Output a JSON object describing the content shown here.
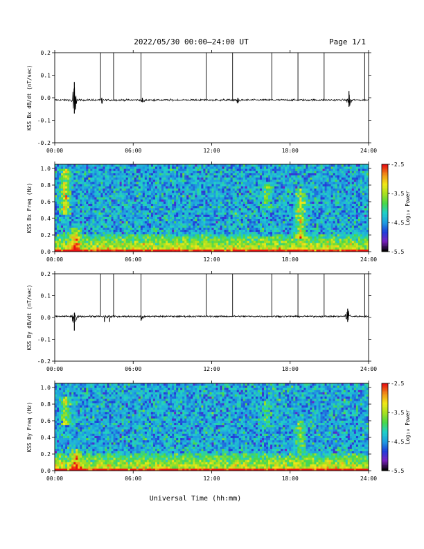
{
  "header": {
    "title": "2022/05/30  00:00–24:00 UT",
    "page": "Page 1/1"
  },
  "xlabel": "Universal Time (hh:mm)",
  "colors": {
    "trace": "#000000",
    "colormap": [
      "#000000",
      "#7a1fbf",
      "#1f3fd9",
      "#1f9fe0",
      "#20d0c8",
      "#48d848",
      "#a8e020",
      "#f0e818",
      "#f09018",
      "#e81010"
    ]
  },
  "chart_data": [
    {
      "id": "bx-waveform",
      "type": "line",
      "ylabel": "KSS Bx dB/dt (nT/sec)",
      "x_ticks": [
        "00:00",
        "06:00",
        "12:00",
        "18:00",
        "24:00"
      ],
      "y_ticks": [
        "0.2",
        "0.1",
        "0.0",
        "-0.1",
        "-0.2"
      ],
      "xlim_hours": [
        0,
        24
      ],
      "ylim": [
        -0.2,
        0.2
      ],
      "baseline": -0.01,
      "noise_amplitude": 0.004,
      "bursts": [
        {
          "hour": 1.5,
          "max": 0.07,
          "min": -0.07
        },
        {
          "hour": 3.6,
          "max": 0.0,
          "min": -0.025
        },
        {
          "hour": 6.7,
          "max": 0.0,
          "min": -0.02
        },
        {
          "hour": 14.0,
          "max": 0.0,
          "min": -0.025
        },
        {
          "hour": 22.5,
          "max": 0.03,
          "min": -0.04
        }
      ],
      "spikes": [
        {
          "hour": 3.5,
          "value": 0.2
        },
        {
          "hour": 4.5,
          "value": 0.2
        },
        {
          "hour": 6.6,
          "value": 0.2
        },
        {
          "hour": 11.6,
          "value": 0.2
        },
        {
          "hour": 13.6,
          "value": 0.2
        },
        {
          "hour": 16.6,
          "value": 0.2
        },
        {
          "hour": 18.6,
          "value": 0.2
        },
        {
          "hour": 20.6,
          "value": 0.2
        },
        {
          "hour": 23.7,
          "value": 0.2
        }
      ]
    },
    {
      "id": "bx-spectrogram",
      "type": "heatmap",
      "ylabel": "KSS Bx Freq (Hz)",
      "colorbar_label": "Log₁₀ Power",
      "colorbar_ticks": [
        "-2.5",
        "-3.5",
        "-4.5",
        "-5.5"
      ],
      "color_range": [
        -5.5,
        -2.5
      ],
      "x_ticks": [
        "00:00",
        "06:00",
        "12:00",
        "18:00",
        "24:00"
      ],
      "y_ticks": [
        "1.0",
        "0.8",
        "0.6",
        "0.4",
        "0.2",
        "0.0"
      ],
      "xlim_hours": [
        0,
        24
      ],
      "ylim": [
        0.0,
        1.05
      ],
      "background_power": -4.4,
      "low_freq_power": -3.4,
      "features": [
        {
          "hour": 0.8,
          "freq_low": 0.45,
          "freq_high": 1.0,
          "power": -2.9
        },
        {
          "hour": 1.6,
          "freq_low": 0.0,
          "freq_high": 0.3,
          "power": -3.3
        },
        {
          "hour": 16.2,
          "freq_low": 0.5,
          "freq_high": 0.85,
          "power": -3.6
        },
        {
          "hour": 18.8,
          "freq_low": 0.15,
          "freq_high": 0.75,
          "power": -3.2
        }
      ]
    },
    {
      "id": "by-waveform",
      "type": "line",
      "ylabel": "KSS By dB/dt (nT/sec)",
      "x_ticks": [
        "00:00",
        "06:00",
        "12:00",
        "18:00",
        "24:00"
      ],
      "y_ticks": [
        "0.2",
        "0.1",
        "0.0",
        "-0.1",
        "-0.2"
      ],
      "xlim_hours": [
        0,
        24
      ],
      "ylim": [
        -0.2,
        0.2
      ],
      "baseline": 0.005,
      "noise_amplitude": 0.004,
      "bursts": [
        {
          "hour": 1.5,
          "max": 0.02,
          "min": -0.06
        },
        {
          "hour": 3.8,
          "max": 0.0,
          "min": -0.02
        },
        {
          "hour": 4.2,
          "max": 0.0,
          "min": -0.02
        },
        {
          "hour": 6.6,
          "max": 0.0,
          "min": -0.015
        },
        {
          "hour": 22.4,
          "max": 0.04,
          "min": -0.02
        }
      ],
      "spikes": [
        {
          "hour": 3.5,
          "value": 0.2
        },
        {
          "hour": 4.5,
          "value": 0.2
        },
        {
          "hour": 6.6,
          "value": 0.2
        },
        {
          "hour": 11.6,
          "value": 0.2
        },
        {
          "hour": 13.6,
          "value": 0.2
        },
        {
          "hour": 16.6,
          "value": 0.2
        },
        {
          "hour": 18.6,
          "value": 0.2
        },
        {
          "hour": 20.6,
          "value": 0.2
        },
        {
          "hour": 23.7,
          "value": 0.2
        }
      ]
    },
    {
      "id": "by-spectrogram",
      "type": "heatmap",
      "ylabel": "KSS By Freq (Hz)",
      "colorbar_label": "Log₁₀ Power",
      "colorbar_ticks": [
        "-2.5",
        "-3.5",
        "-4.5",
        "-5.5"
      ],
      "color_range": [
        -5.5,
        -2.5
      ],
      "x_ticks": [
        "00:00",
        "06:00",
        "12:00",
        "18:00",
        "24:00"
      ],
      "y_ticks": [
        "1.0",
        "0.8",
        "0.6",
        "0.4",
        "0.2",
        "0.0"
      ],
      "xlim_hours": [
        0,
        24
      ],
      "ylim": [
        0.0,
        1.05
      ],
      "background_power": -4.4,
      "low_freq_power": -3.4,
      "features": [
        {
          "hour": 0.8,
          "freq_low": 0.55,
          "freq_high": 0.9,
          "power": -3.3
        },
        {
          "hour": 1.6,
          "freq_low": 0.0,
          "freq_high": 0.25,
          "power": -3.3
        },
        {
          "hour": 16.2,
          "freq_low": 0.5,
          "freq_high": 0.85,
          "power": -3.8
        },
        {
          "hour": 18.8,
          "freq_low": 0.2,
          "freq_high": 0.6,
          "power": -3.6
        }
      ]
    }
  ]
}
